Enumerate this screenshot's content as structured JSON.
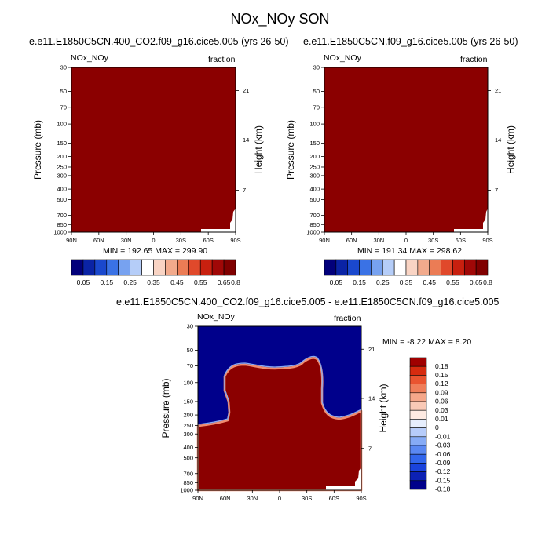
{
  "main_title": "NOx_NOy SON",
  "colors": {
    "dark_red": "#8b0000",
    "dark_blue": "#00008b",
    "seq_palette": [
      "#02007b",
      "#0a23a5",
      "#1a48cd",
      "#3a72e5",
      "#77a2f0",
      "#b5cdf8",
      "#ffffff",
      "#f9d4c4",
      "#f2aa8c",
      "#eb7c55",
      "#e0492b",
      "#c8200f",
      "#a00807",
      "#800000"
    ],
    "diff_palette": [
      "#00008b",
      "#0c21b4",
      "#1a43dc",
      "#3266ec",
      "#5a88f2",
      "#86abf6",
      "#b6ccfa",
      "#e6eefd",
      "#fdeae2",
      "#f9c9b6",
      "#f5a78a",
      "#ef7e5a",
      "#e95430",
      "#d62b0f",
      "#a00000"
    ]
  },
  "chart_data": [
    {
      "type": "heatmap",
      "title": "e.e11.E1850C5CN.400_CO2.f09_g16.cice5.005 (yrs 26-50)",
      "variable_label": "NOx_NOy",
      "units_label": "fraction",
      "xlabel": "",
      "ylabel": "Pressure (mb)",
      "ylabel_right": "Height (km)",
      "x_ticks": [
        "90N",
        "60N",
        "30N",
        "0",
        "30S",
        "60S",
        "90S"
      ],
      "y_ticks": [
        "30",
        "50",
        "70",
        "100",
        "150",
        "200",
        "250",
        "300",
        "400",
        "500",
        "700",
        "850",
        "1000"
      ],
      "y_ticks_right": [
        "21",
        "14",
        "7"
      ],
      "xlim": [
        90,
        -90
      ],
      "ylim": [
        1000,
        30
      ],
      "log_y": true,
      "field": "nearly uniform maximum (~0.8+) everywhere; slightly lower near surface in southern high latitudes",
      "stats": "MIN = 192.65  MAX = 299.90",
      "colorbar_labels": [
        "0.05",
        "0.15",
        "0.25",
        "0.35",
        "0.45",
        "0.55",
        "0.65",
        "0.8"
      ],
      "colorbar_levels": [
        0.05,
        0.1,
        0.15,
        0.2,
        0.25,
        0.3,
        0.35,
        0.4,
        0.45,
        0.5,
        0.55,
        0.6,
        0.65,
        0.8
      ]
    },
    {
      "type": "heatmap",
      "title": "e.e11.E1850C5CN.f09_g16.cice5.005 (yrs 26-50)",
      "variable_label": "NOx_NOy",
      "units_label": "fraction",
      "xlabel": "",
      "ylabel": "Pressure (mb)",
      "ylabel_right": "Height (km)",
      "x_ticks": [
        "90N",
        "60N",
        "30N",
        "0",
        "30S",
        "60S",
        "90S"
      ],
      "y_ticks": [
        "30",
        "50",
        "70",
        "100",
        "150",
        "200",
        "250",
        "300",
        "400",
        "500",
        "700",
        "850",
        "1000"
      ],
      "y_ticks_right": [
        "21",
        "14",
        "7"
      ],
      "xlim": [
        90,
        -90
      ],
      "ylim": [
        1000,
        30
      ],
      "log_y": true,
      "stats": "MIN = 191.34  MAX = 298.62",
      "colorbar_labels": [
        "0.05",
        "0.15",
        "0.25",
        "0.35",
        "0.45",
        "0.55",
        "0.65",
        "0.8"
      ]
    },
    {
      "type": "heatmap",
      "title": "e.e11.E1850C5CN.400_CO2.f09_g16.cice5.005 - e.e11.E1850C5CN.f09_g16.cice5.005",
      "variable_label": "NOx_NOy",
      "units_label": "fraction",
      "xlabel": "",
      "ylabel": "Pressure (mb)",
      "ylabel_right": "Height (km)",
      "x_ticks": [
        "90N",
        "60N",
        "30N",
        "0",
        "30S",
        "60S",
        "90S"
      ],
      "y_ticks": [
        "30",
        "50",
        "70",
        "100",
        "150",
        "200",
        "250",
        "300",
        "400",
        "500",
        "700",
        "850",
        "1000"
      ],
      "y_ticks_right": [
        "21",
        "14",
        "7"
      ],
      "xlim": [
        90,
        -90
      ],
      "ylim": [
        1000,
        30
      ],
      "log_y": true,
      "field": "positive (>=0.18) below ~70 mb between ~65N and ~45S and below ~200 mb at all latitudes; negative (<=-0.18) above",
      "stats": "MIN = -8.22  MAX =  8.20",
      "colorbar_labels": [
        "0.18",
        "0.15",
        "0.12",
        "0.09",
        "0.06",
        "0.03",
        "0.01",
        "0",
        "-0.01",
        "-0.03",
        "-0.06",
        "-0.09",
        "-0.12",
        "-0.15",
        "-0.18"
      ],
      "colorbar_levels": [
        0.18,
        0.15,
        0.12,
        0.09,
        0.06,
        0.03,
        0.01,
        0,
        -0.01,
        -0.03,
        -0.06,
        -0.09,
        -0.12,
        -0.15,
        -0.18
      ]
    }
  ]
}
